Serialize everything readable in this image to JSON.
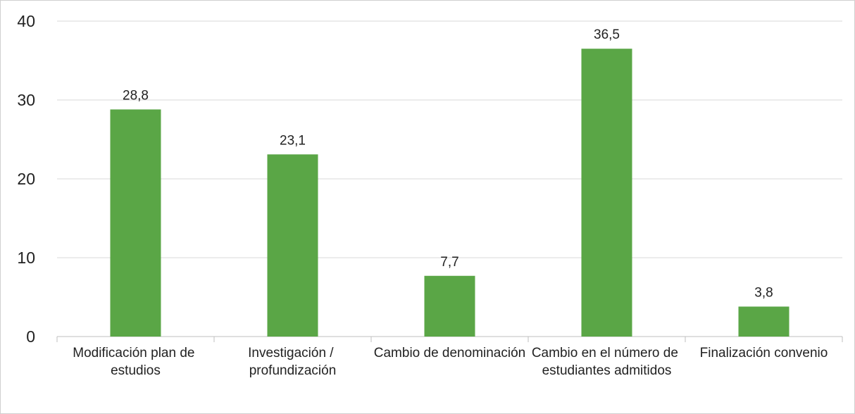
{
  "chart_data": {
    "type": "bar",
    "categories": [
      "Modificación plan de estudios",
      "Investigación / profundización",
      "Cambio de denominación",
      "Cambio en el número de estudiantes admitidos",
      "Finalización convenio"
    ],
    "values": [
      28.8,
      23.1,
      7.7,
      36.5,
      3.8
    ],
    "value_labels": [
      "28,8",
      "23,1",
      "7,7",
      "36,5",
      "3,8"
    ],
    "color": "#5aa646",
    "ylim": [
      0,
      40
    ],
    "yticks": [
      0,
      10,
      20,
      30,
      40
    ],
    "grid": true
  }
}
